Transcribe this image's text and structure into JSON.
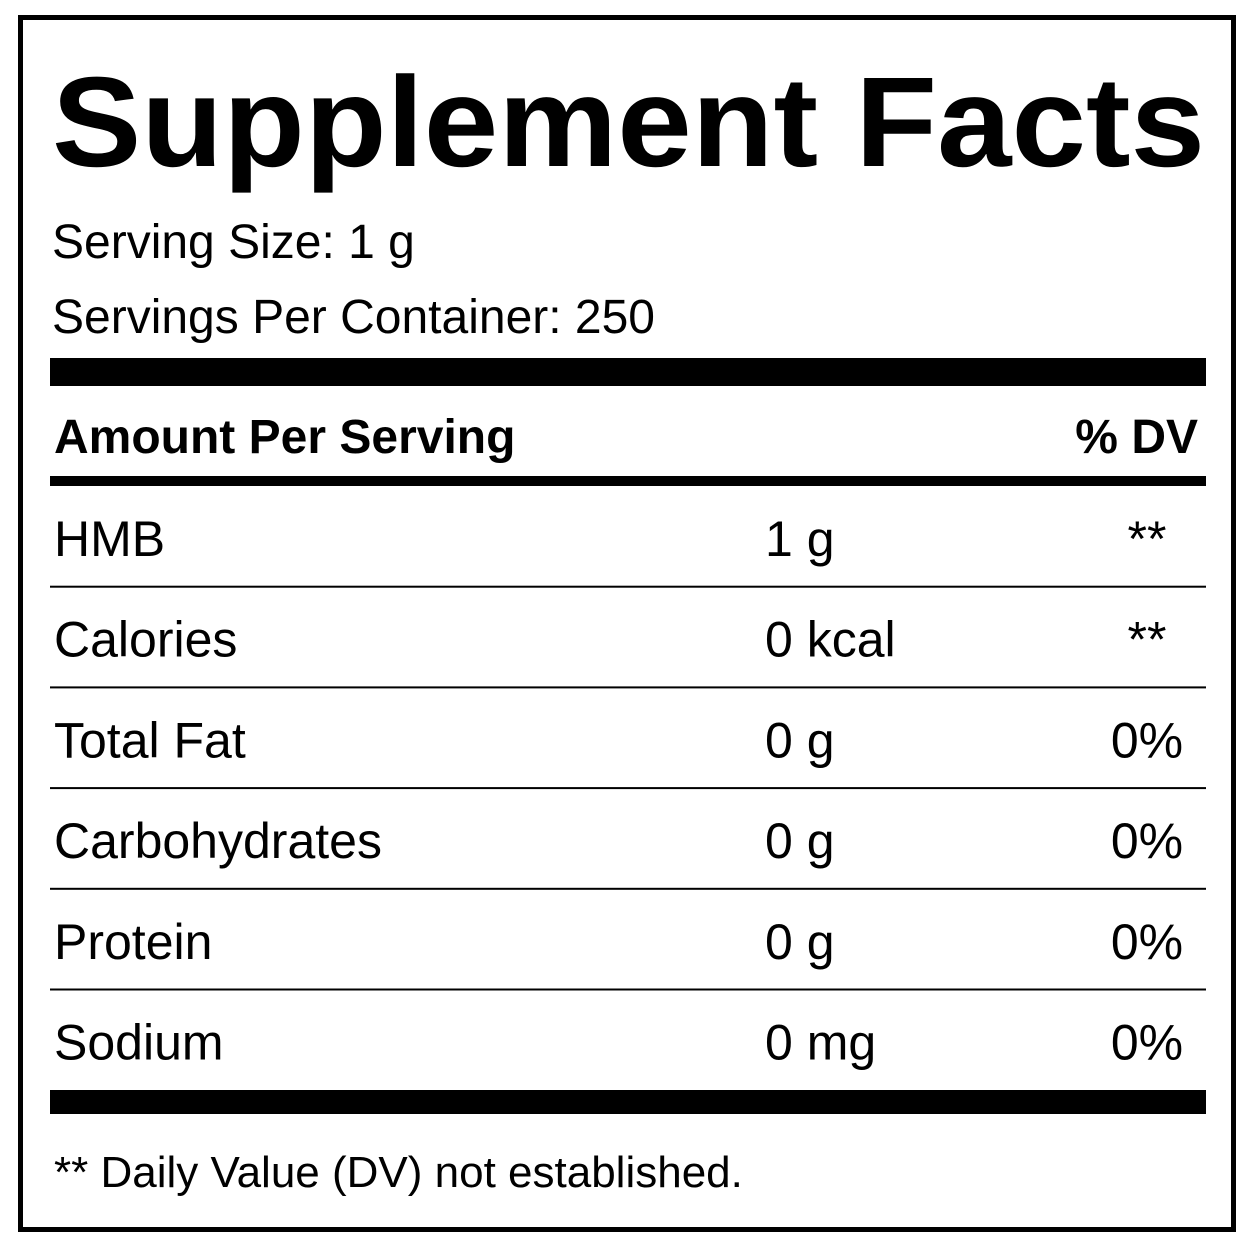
{
  "title": "Supplement Facts",
  "serving_size": "Serving Size: 1 g",
  "servings_per_container": "Servings Per Container: 250",
  "table": {
    "header": [
      "Amount Per Serving",
      "% DV"
    ],
    "rows": [
      [
        "HMB",
        "1 g",
        "**"
      ],
      [
        "Calories",
        "0 kcal",
        "**"
      ],
      [
        "Total Fat",
        "0 g",
        "0%"
      ],
      [
        "Carbohydrates",
        "0 g",
        "0%"
      ],
      [
        "Protein",
        "0 g",
        "0%"
      ],
      [
        "Sodium",
        "0 mg",
        "0%"
      ]
    ]
  },
  "footnote": "** Daily Value (DV) not established."
}
